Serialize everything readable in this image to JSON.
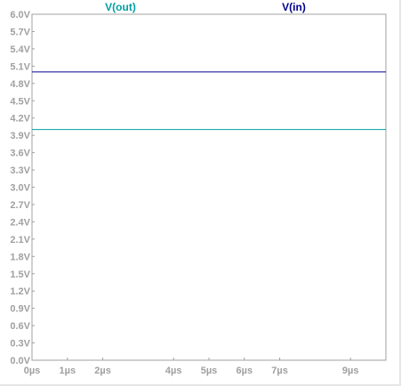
{
  "chart_data": {
    "type": "line",
    "title": "",
    "xlabel": "",
    "ylabel": "",
    "xlim": [
      0,
      10
    ],
    "ylim": [
      0,
      6
    ],
    "grid": false,
    "legend_placement": "top",
    "y_ticks": [
      {
        "value": 6.0,
        "label": "6.0V"
      },
      {
        "value": 5.7,
        "label": "5.7V"
      },
      {
        "value": 5.4,
        "label": "5.4V"
      },
      {
        "value": 5.1,
        "label": "5.1V"
      },
      {
        "value": 4.8,
        "label": "4.8V"
      },
      {
        "value": 4.5,
        "label": "4.5V"
      },
      {
        "value": 4.2,
        "label": "4.2V"
      },
      {
        "value": 3.9,
        "label": "3.9V"
      },
      {
        "value": 3.6,
        "label": "3.6V"
      },
      {
        "value": 3.3,
        "label": "3.3V"
      },
      {
        "value": 3.0,
        "label": "3.0V"
      },
      {
        "value": 2.7,
        "label": "2.7V"
      },
      {
        "value": 2.4,
        "label": "2.4V"
      },
      {
        "value": 2.1,
        "label": "2.1V"
      },
      {
        "value": 1.8,
        "label": "1.8V"
      },
      {
        "value": 1.5,
        "label": "1.5V"
      },
      {
        "value": 1.2,
        "label": "1.2V"
      },
      {
        "value": 0.9,
        "label": "0.9V"
      },
      {
        "value": 0.6,
        "label": "0.6V"
      },
      {
        "value": 0.3,
        "label": "0.3V"
      },
      {
        "value": 0.0,
        "label": "0.0V"
      }
    ],
    "x_ticks": [
      {
        "value": 0,
        "label": "0µs"
      },
      {
        "value": 1,
        "label": "1µs"
      },
      {
        "value": 2,
        "label": "2µs"
      },
      {
        "value": 4,
        "label": "4µs"
      },
      {
        "value": 5,
        "label": "5µs"
      },
      {
        "value": 6,
        "label": "6µs"
      },
      {
        "value": 7,
        "label": "7µs"
      },
      {
        "value": 9,
        "label": "9µs"
      }
    ],
    "series": [
      {
        "name": "V(out)",
        "color": "#00a0a0",
        "x": [
          0,
          10
        ],
        "y": [
          4.0,
          4.0
        ],
        "legend_x_value": 2.5
      },
      {
        "name": "V(in)",
        "color": "#00008c",
        "x": [
          0,
          10
        ],
        "y": [
          5.0,
          5.0
        ],
        "legend_x_value": 7.4
      }
    ],
    "colors": {
      "frame": "#a0a0a0",
      "tick_text": "#a0a0a0",
      "background": "#ffffff"
    }
  }
}
